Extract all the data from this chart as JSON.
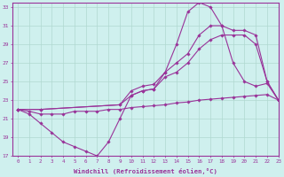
{
  "xlabel": "Windchill (Refroidissement éolien,°C)",
  "background_color": "#cff0ee",
  "grid_color": "#b0d8d0",
  "line_color": "#993399",
  "xlim": [
    -0.5,
    23
  ],
  "ylim": [
    17,
    33.5
  ],
  "yticks": [
    17,
    19,
    21,
    23,
    25,
    27,
    29,
    31,
    33
  ],
  "xticks": [
    0,
    1,
    2,
    3,
    4,
    5,
    6,
    7,
    8,
    9,
    10,
    11,
    12,
    13,
    14,
    15,
    16,
    17,
    18,
    19,
    20,
    21,
    22,
    23
  ],
  "series": [
    {
      "x": [
        0,
        1,
        2,
        3,
        4,
        5,
        6,
        7,
        8,
        9,
        10,
        11,
        12,
        13,
        14,
        15,
        16,
        17,
        18,
        19,
        20,
        21,
        22,
        23
      ],
      "y": [
        22,
        21.8,
        21.5,
        21.5,
        21.5,
        21.8,
        21.8,
        21.8,
        22,
        22,
        22.2,
        22.3,
        22.4,
        22.5,
        22.7,
        22.8,
        23,
        23.1,
        23.2,
        23.3,
        23.4,
        23.5,
        23.6,
        23
      ]
    },
    {
      "x": [
        0,
        1,
        2,
        3,
        4,
        5,
        6,
        7,
        8,
        9,
        10,
        11,
        12,
        13,
        14,
        15,
        16,
        17,
        18,
        19,
        20,
        21,
        22,
        23
      ],
      "y": [
        22,
        21.5,
        20.5,
        19.5,
        18.5,
        18,
        17.5,
        17,
        18.5,
        21,
        23.5,
        24,
        24.2,
        26,
        29,
        32.5,
        33.5,
        33,
        31,
        27,
        25,
        24.5,
        24.8,
        23
      ]
    },
    {
      "x": [
        0,
        2,
        9,
        10,
        11,
        12,
        13,
        14,
        15,
        16,
        17,
        18,
        19,
        20,
        21,
        22,
        23
      ],
      "y": [
        22,
        22,
        22.5,
        24,
        24.5,
        24.7,
        26,
        27,
        28,
        30,
        31,
        31,
        30.5,
        30.5,
        30,
        25,
        23
      ]
    },
    {
      "x": [
        0,
        2,
        9,
        10,
        11,
        12,
        13,
        14,
        15,
        16,
        17,
        18,
        19,
        20,
        21,
        22,
        23
      ],
      "y": [
        22,
        22,
        22.5,
        23.5,
        24,
        24.2,
        25.5,
        26,
        27,
        28.5,
        29.5,
        30,
        30,
        30,
        29,
        25,
        23
      ]
    }
  ]
}
